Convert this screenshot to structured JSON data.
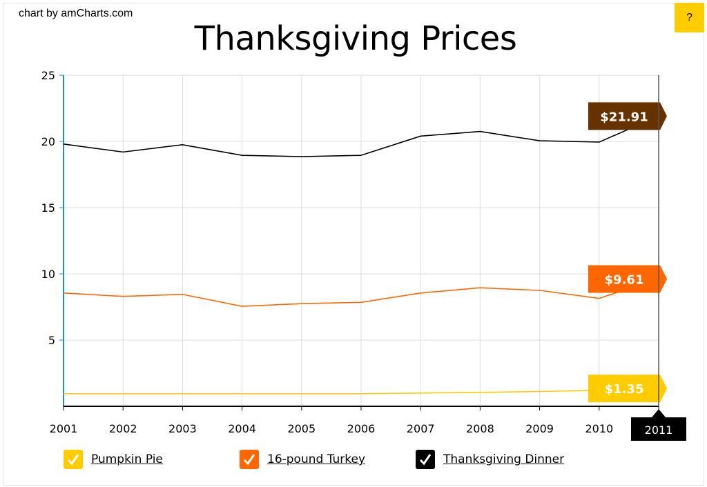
{
  "credit": "chart by amCharts.com",
  "help_label": "?",
  "chart_data": {
    "type": "line",
    "title": "Thanksgiving Prices",
    "xlabel": "",
    "ylabel": "",
    "x": [
      "2001",
      "2002",
      "2003",
      "2004",
      "2005",
      "2006",
      "2007",
      "2008",
      "2009",
      "2010",
      "2011"
    ],
    "ylim": [
      0,
      25
    ],
    "yticks": [
      "5",
      "10",
      "15",
      "20",
      "25"
    ],
    "grid": true,
    "series": [
      {
        "name": "Pumpkin Pie",
        "color": "#ffcc00",
        "values": [
          0.95,
          0.95,
          0.95,
          0.95,
          0.95,
          0.95,
          1.0,
          1.05,
          1.12,
          1.2,
          1.35
        ],
        "end_label": "$1.35"
      },
      {
        "name": "16-pound Turkey",
        "color": "#ff6600",
        "values": [
          8.55,
          8.3,
          8.45,
          7.55,
          7.75,
          7.85,
          8.55,
          8.95,
          8.75,
          8.15,
          9.61
        ],
        "end_label": "$9.61"
      },
      {
        "name": "Thanksgiving Dinner",
        "color": "#000000",
        "label_color": "#663300",
        "values": [
          19.8,
          19.2,
          19.75,
          18.95,
          18.85,
          18.95,
          20.4,
          20.75,
          20.05,
          19.95,
          21.91
        ],
        "end_label": "$21.91"
      }
    ],
    "cursor_label": "2011",
    "legend_position": "bottom"
  },
  "legend_check_glyph": "✓"
}
